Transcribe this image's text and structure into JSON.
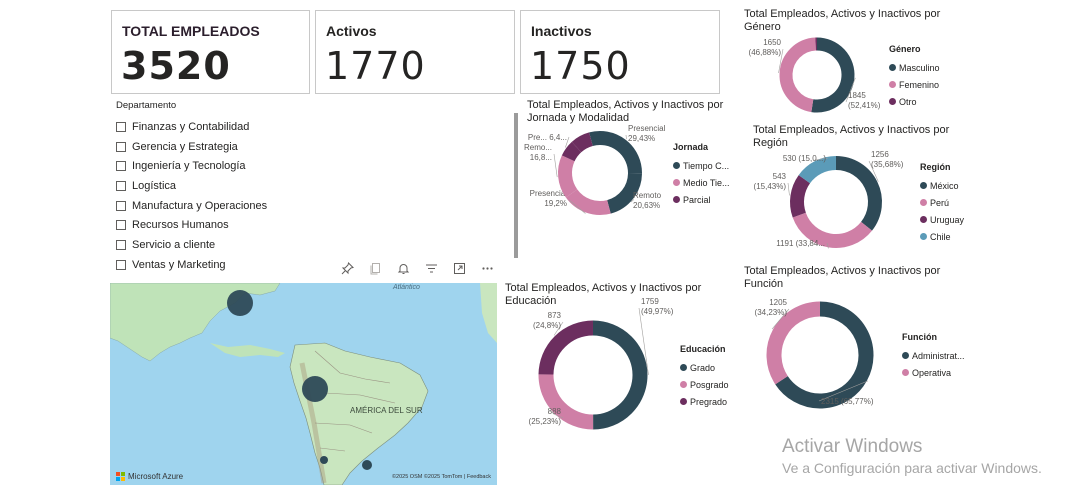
{
  "cards": {
    "total": {
      "label": "TOTAL EMPLEADOS",
      "value": "3520"
    },
    "activos": {
      "label": "Activos",
      "value": "1770"
    },
    "inactivos": {
      "label": "Inactivos",
      "value": "1750"
    }
  },
  "department_filter": {
    "title": "Departamento",
    "items": [
      "Finanzas y Contabilidad",
      "Gerencia y Estrategia",
      "Ingeniería y Tecnología",
      "Logística",
      "Manufactura y Operaciones",
      "Recursos Humanos",
      "Servicio a cliente",
      "Ventas y Marketing"
    ]
  },
  "toolbar": {
    "icons": [
      "pin-icon",
      "copy-icon",
      "bell-icon",
      "filter-icon",
      "focus-mode-icon",
      "more-options-icon"
    ]
  },
  "map": {
    "ocean_label": "Atlántico",
    "continent_label": "AMÉRICA DEL SUR",
    "provider": "Microsoft Azure",
    "attribution": "©2025 OSM ©2025 TomTom | Feedback"
  },
  "colors": {
    "dark": "#2e4a57",
    "pink": "#cf7fa6",
    "purple": "#6c2e5f",
    "blue": "#5b9bb8"
  },
  "chart_data": [
    {
      "id": "jornada",
      "type": "pie",
      "title": "Total Empleados, Activos y Inactivos por Jornada y Modalidad",
      "legend_title": "Jornada",
      "legend": [
        {
          "name": "Tiempo C...",
          "color": "#2e4a57"
        },
        {
          "name": "Medio Tie...",
          "color": "#cf7fa6"
        },
        {
          "name": "Parcial",
          "color": "#6c2e5f"
        }
      ],
      "slices": [
        {
          "label_top": "Presencial",
          "label_bot": "29,43%",
          "value": 29.43,
          "color": "#2e4a57"
        },
        {
          "label_top": "Remoto",
          "label_bot": "20,63%",
          "value": 20.63,
          "color": "#2e4a57"
        },
        {
          "label_top": "Presencial",
          "label_bot": "19,2%",
          "value": 19.2,
          "color": "#cf7fa6"
        },
        {
          "label_top": "Remo...",
          "label_bot": "16,8...",
          "value": 16.8,
          "color": "#cf7fa6"
        },
        {
          "label_top": "Pre... 6,4...",
          "label_bot": "",
          "value": 6.4,
          "color": "#6c2e5f"
        },
        {
          "label_top": "",
          "label_bot": "",
          "value": 7.54,
          "color": "#6c2e5f"
        }
      ]
    },
    {
      "id": "educacion",
      "type": "pie",
      "title": "Total Empleados, Activos y Inactivos por Educación",
      "legend_title": "Educación",
      "legend": [
        {
          "name": "Grado",
          "color": "#2e4a57"
        },
        {
          "name": "Posgrado",
          "color": "#cf7fa6"
        },
        {
          "name": "Pregrado",
          "color": "#6c2e5f"
        }
      ],
      "slices": [
        {
          "label_top": "1759",
          "label_bot": "(49,97%)",
          "value": 1759,
          "color": "#2e4a57"
        },
        {
          "label_top": "888",
          "label_bot": "(25,23%)",
          "value": 888,
          "color": "#cf7fa6"
        },
        {
          "label_top": "873",
          "label_bot": "(24,8%)",
          "value": 873,
          "color": "#6c2e5f"
        }
      ]
    },
    {
      "id": "genero",
      "type": "pie",
      "title": "Total Empleados, Activos y Inactivos por Género",
      "legend_title": "Género",
      "legend": [
        {
          "name": "Masculino",
          "color": "#2e4a57"
        },
        {
          "name": "Femenino",
          "color": "#cf7fa6"
        },
        {
          "name": "Otro",
          "color": "#6c2e5f"
        }
      ],
      "slices": [
        {
          "label_top": "1845",
          "label_bot": "(52,41%)",
          "value": 1845,
          "color": "#2e4a57"
        },
        {
          "label_top": "1650",
          "label_bot": "(46,88%)",
          "value": 1650,
          "color": "#cf7fa6"
        },
        {
          "label_top": "",
          "label_bot": "",
          "value": 25,
          "color": "#6c2e5f"
        }
      ]
    },
    {
      "id": "region",
      "type": "pie",
      "title": "Total Empleados, Activos y Inactivos por Región",
      "legend_title": "Región",
      "legend": [
        {
          "name": "México",
          "color": "#2e4a57"
        },
        {
          "name": "Perú",
          "color": "#cf7fa6"
        },
        {
          "name": "Uruguay",
          "color": "#6c2e5f"
        },
        {
          "name": "Chile",
          "color": "#5b9bb8"
        }
      ],
      "slices": [
        {
          "label_top": "1256",
          "label_bot": "(35,68%)",
          "value": 1256,
          "color": "#2e4a57"
        },
        {
          "label_top": "1191 (33,84...",
          "label_bot": "",
          "value": 1191,
          "color": "#cf7fa6"
        },
        {
          "label_top": "543",
          "label_bot": "(15,43%)",
          "value": 543,
          "color": "#6c2e5f"
        },
        {
          "label_top": "530 (15,0...)",
          "label_bot": "",
          "value": 530,
          "color": "#5b9bb8"
        }
      ]
    },
    {
      "id": "funcion",
      "type": "pie",
      "title": "Total Empleados, Activos y Inactivos por Función",
      "legend_title": "Función",
      "legend": [
        {
          "name": "Administrat...",
          "color": "#2e4a57"
        },
        {
          "name": "Operativa",
          "color": "#cf7fa6"
        }
      ],
      "slices": [
        {
          "label_top": "2315 (65,77%)",
          "label_bot": "",
          "value": 2315,
          "color": "#2e4a57"
        },
        {
          "label_top": "1205",
          "label_bot": "(34,23%)",
          "value": 1205,
          "color": "#cf7fa6"
        }
      ]
    }
  ],
  "watermark": {
    "line1": "Activar Windows",
    "line2": "Ve a Configuración para activar Windows."
  }
}
